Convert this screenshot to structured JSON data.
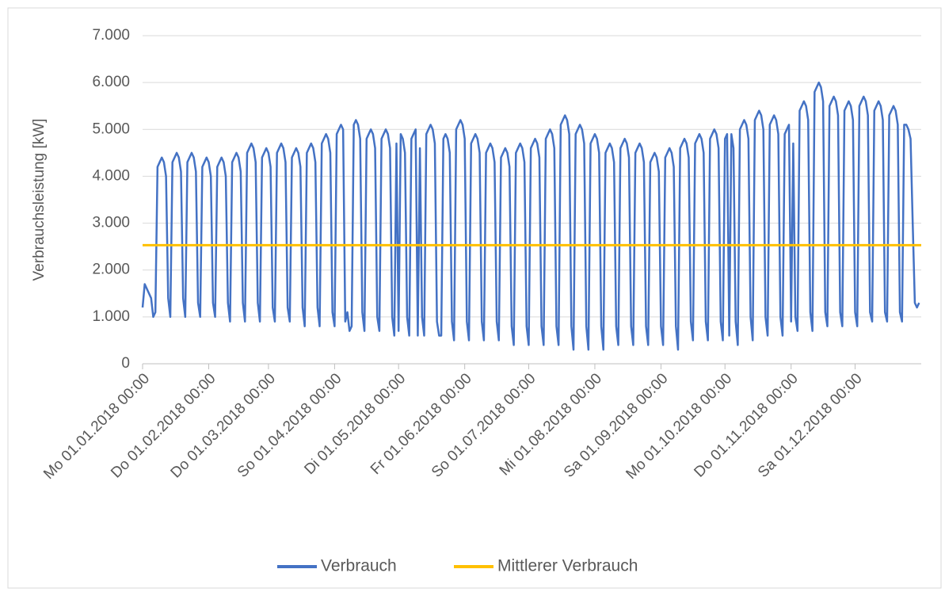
{
  "chart_data": {
    "type": "line",
    "ylabel": "Verbrauchsleistung [kW]",
    "xlim": [
      0,
      365
    ],
    "xticks": [
      {
        "value": 0,
        "label": "Mo 01.01.2018 00:00"
      },
      {
        "value": 31,
        "label": "Do 01.02.2018 00:00"
      },
      {
        "value": 59,
        "label": "Do 01.03.2018 00:00"
      },
      {
        "value": 90,
        "label": "So 01.04.2018 00:00"
      },
      {
        "value": 120,
        "label": "Di 01.05.2018 00:00"
      },
      {
        "value": 151,
        "label": "Fr 01.06.2018 00:00"
      },
      {
        "value": 181,
        "label": "So 01.07.2018 00:00"
      },
      {
        "value": 212,
        "label": "Mi 01.08.2018 00:00"
      },
      {
        "value": 243,
        "label": "Sa 01.09.2018 00:00"
      },
      {
        "value": 273,
        "label": "Mo 01.10.2018 00:00"
      },
      {
        "value": 304,
        "label": "Do 01.11.2018 00:00"
      },
      {
        "value": 334,
        "label": "Sa 01.12.2018 00:00"
      }
    ],
    "ylim": [
      0,
      7000
    ],
    "yticks": [
      0,
      {
        "value": 1000,
        "label": "1.000"
      },
      {
        "value": 2000,
        "label": "2.000"
      },
      {
        "value": 3000,
        "label": "3.000"
      },
      {
        "value": 4000,
        "label": "4.000"
      },
      {
        "value": 5000,
        "label": "5.000"
      },
      {
        "value": 6000,
        "label": "6.000"
      },
      {
        "value": 7000,
        "label": "7.000"
      }
    ],
    "grid": true,
    "legend": "bottom",
    "series": [
      {
        "name": "Verbrauch",
        "color": "#4472c4",
        "x": [
          0,
          1,
          2,
          3,
          4,
          5,
          6,
          7,
          8,
          9,
          10,
          11,
          12,
          13,
          14,
          15,
          16,
          17,
          18,
          19,
          20,
          21,
          22,
          23,
          24,
          25,
          26,
          27,
          28,
          29,
          30,
          31,
          32,
          33,
          34,
          35,
          36,
          37,
          38,
          39,
          40,
          41,
          42,
          43,
          44,
          45,
          46,
          47,
          48,
          49,
          50,
          51,
          52,
          53,
          54,
          55,
          56,
          57,
          58,
          59,
          60,
          61,
          62,
          63,
          64,
          65,
          66,
          67,
          68,
          69,
          70,
          71,
          72,
          73,
          74,
          75,
          76,
          77,
          78,
          79,
          80,
          81,
          82,
          83,
          84,
          85,
          86,
          87,
          88,
          89,
          90,
          91,
          92,
          93,
          94,
          95,
          96,
          97,
          98,
          99,
          100,
          101,
          102,
          103,
          104,
          105,
          106,
          107,
          108,
          109,
          110,
          111,
          112,
          113,
          114,
          115,
          116,
          117,
          118,
          119,
          120,
          121,
          122,
          123,
          124,
          125,
          126,
          127,
          128,
          129,
          130,
          131,
          132,
          133,
          134,
          135,
          136,
          137,
          138,
          139,
          140,
          141,
          142,
          143,
          144,
          145,
          146,
          147,
          148,
          149,
          150,
          151,
          152,
          153,
          154,
          155,
          156,
          157,
          158,
          159,
          160,
          161,
          162,
          163,
          164,
          165,
          166,
          167,
          168,
          169,
          170,
          171,
          172,
          173,
          174,
          175,
          176,
          177,
          178,
          179,
          180,
          181,
          182,
          183,
          184,
          185,
          186,
          187,
          188,
          189,
          190,
          191,
          192,
          193,
          194,
          195,
          196,
          197,
          198,
          199,
          200,
          201,
          202,
          203,
          204,
          205,
          206,
          207,
          208,
          209,
          210,
          211,
          212,
          213,
          214,
          215,
          216,
          217,
          218,
          219,
          220,
          221,
          222,
          223,
          224,
          225,
          226,
          227,
          228,
          229,
          230,
          231,
          232,
          233,
          234,
          235,
          236,
          237,
          238,
          239,
          240,
          241,
          242,
          243,
          244,
          245,
          246,
          247,
          248,
          249,
          250,
          251,
          252,
          253,
          254,
          255,
          256,
          257,
          258,
          259,
          260,
          261,
          262,
          263,
          264,
          265,
          266,
          267,
          268,
          269,
          270,
          271,
          272,
          273,
          274,
          275,
          276,
          277,
          278,
          279,
          280,
          281,
          282,
          283,
          284,
          285,
          286,
          287,
          288,
          289,
          290,
          291,
          292,
          293,
          294,
          295,
          296,
          297,
          298,
          299,
          300,
          301,
          302,
          303,
          304,
          305,
          306,
          307,
          308,
          309,
          310,
          311,
          312,
          313,
          314,
          315,
          316,
          317,
          318,
          319,
          320,
          321,
          322,
          323,
          324,
          325,
          326,
          327,
          328,
          329,
          330,
          331,
          332,
          333,
          334,
          335,
          336,
          337,
          338,
          339,
          340,
          341,
          342,
          343,
          344,
          345,
          346,
          347,
          348,
          349,
          350,
          351,
          352,
          353,
          354,
          355,
          356,
          357,
          358,
          359,
          360,
          361,
          362,
          363,
          364
        ],
        "values": [
          1200,
          1700,
          1600,
          1500,
          1400,
          1000,
          1100,
          4200,
          4300,
          4400,
          4300,
          4000,
          1400,
          1000,
          4300,
          4400,
          4500,
          4400,
          4100,
          1400,
          1000,
          4300,
          4400,
          4500,
          4400,
          4100,
          1300,
          1000,
          4200,
          4300,
          4400,
          4300,
          4000,
          1300,
          1000,
          4200,
          4300,
          4400,
          4300,
          4000,
          1300,
          900,
          4300,
          4400,
          4500,
          4400,
          4100,
          1300,
          900,
          4500,
          4600,
          4700,
          4600,
          4300,
          1300,
          900,
          4400,
          4500,
          4600,
          4500,
          4200,
          1200,
          900,
          4500,
          4600,
          4700,
          4600,
          4300,
          1200,
          900,
          4400,
          4500,
          4600,
          4500,
          4200,
          1200,
          800,
          4500,
          4600,
          4700,
          4600,
          4300,
          1200,
          800,
          4700,
          4800,
          4900,
          4800,
          4500,
          1100,
          800,
          4900,
          5000,
          5100,
          5000,
          900,
          1100,
          700,
          800,
          5100,
          5200,
          5100,
          4800,
          1100,
          700,
          4800,
          4900,
          5000,
          4900,
          4600,
          1000,
          700,
          4800,
          4900,
          5000,
          4900,
          4600,
          1000,
          600,
          4700,
          700,
          4900,
          4800,
          4500,
          1000,
          600,
          4800,
          4900,
          5000,
          600,
          4600,
          1000,
          600,
          4900,
          5000,
          5100,
          5000,
          4700,
          900,
          600,
          600,
          4800,
          4900,
          4800,
          4500,
          900,
          500,
          5000,
          5100,
          5200,
          5100,
          4800,
          900,
          500,
          4700,
          4800,
          4900,
          4800,
          4500,
          900,
          500,
          4500,
          4600,
          4700,
          4600,
          4300,
          900,
          500,
          4400,
          4500,
          4600,
          4500,
          4200,
          800,
          400,
          4500,
          4600,
          4700,
          4600,
          4300,
          800,
          400,
          4600,
          4700,
          4800,
          4700,
          4400,
          800,
          400,
          4800,
          4900,
          5000,
          4900,
          4600,
          800,
          400,
          5100,
          5200,
          5300,
          5200,
          4900,
          800,
          300,
          4900,
          5000,
          5100,
          5000,
          4700,
          800,
          300,
          4700,
          4800,
          4900,
          4800,
          4500,
          800,
          300,
          4500,
          4600,
          4700,
          4600,
          4300,
          800,
          400,
          4600,
          4700,
          4800,
          4700,
          4400,
          800,
          400,
          4500,
          4600,
          4700,
          4600,
          4300,
          800,
          400,
          4300,
          4400,
          4500,
          4400,
          4100,
          800,
          400,
          4400,
          4500,
          4600,
          4500,
          4200,
          800,
          300,
          4600,
          4700,
          4800,
          4700,
          4400,
          900,
          500,
          4700,
          4800,
          4900,
          4800,
          4500,
          900,
          500,
          4800,
          4900,
          5000,
          4900,
          4600,
          900,
          500,
          4800,
          4900,
          600,
          4900,
          4600,
          900,
          400,
          5000,
          5100,
          5200,
          5100,
          4800,
          1000,
          500,
          5200,
          5300,
          5400,
          5300,
          5000,
          1000,
          600,
          5100,
          5200,
          5300,
          5200,
          4900,
          1000,
          600,
          4900,
          5000,
          5100,
          900,
          4700,
          1000,
          700,
          5400,
          5500,
          5600,
          5500,
          5200,
          1100,
          700,
          5800,
          5900,
          6000,
          5900,
          5600,
          1100,
          800,
          5500,
          5600,
          5700,
          5600,
          5300,
          1100,
          800,
          5400,
          5500,
          5600,
          5500,
          5200,
          1100,
          800,
          5500,
          5600,
          5700,
          5600,
          5300,
          1100,
          900,
          5400,
          5500,
          5600,
          5500,
          5200,
          1100,
          900,
          5300,
          5400,
          5500,
          5400,
          5100,
          1100,
          900,
          5100,
          5100,
          5000,
          4800,
          3000,
          1300,
          1200,
          1300
        ]
      },
      {
        "name": "Mittlerer Verbrauch",
        "color": "#ffc000",
        "x": [
          0,
          365
        ],
        "values": [
          2530,
          2530
        ]
      }
    ]
  }
}
